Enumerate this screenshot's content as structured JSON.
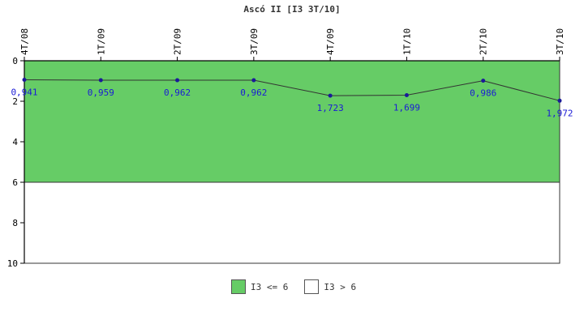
{
  "chart_data": {
    "type": "line",
    "title": "Ascó II [I3 3T/10]",
    "categories": [
      "4T/08",
      "1T/09",
      "2T/09",
      "3T/09",
      "4T/09",
      "1T/10",
      "2T/10",
      "3T/10"
    ],
    "series": [
      {
        "values": [
          0.941,
          0.959,
          0.962,
          0.962,
          1.723,
          1.699,
          0.986,
          1.972
        ]
      }
    ],
    "data_labels": [
      "0,941",
      "0,959",
      "0,962",
      "0,962",
      "1,723",
      "1,699",
      "0,986",
      "1,972"
    ],
    "y_ticks": [
      "0",
      "2",
      "4",
      "6",
      "8",
      "10"
    ],
    "ylim": [
      0,
      10
    ],
    "y_inverted": true,
    "bands": [
      {
        "label": "I3 <= 6",
        "from": 0,
        "to": 6,
        "color": "#66cc66"
      },
      {
        "label": "I3 > 6",
        "from": 6,
        "to": 10,
        "color": "#ffffff"
      }
    ],
    "line_color": "#333333",
    "point_color": "#1a1a99",
    "label_color": "#1a1ad6"
  }
}
